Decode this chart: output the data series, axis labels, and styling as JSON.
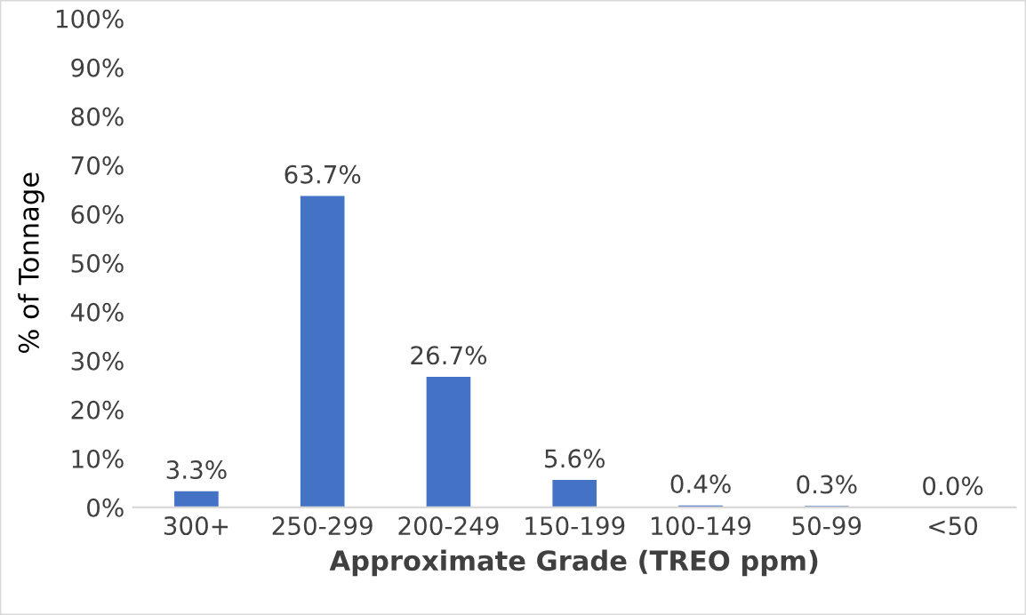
{
  "chart_data": {
    "type": "bar",
    "xlabel": "Approximate Grade (TREO ppm)",
    "ylabel": "% of Tonnage",
    "categories": [
      "300+",
      "250-299",
      "200-249",
      "150-199",
      "100-149",
      "50-99",
      "<50"
    ],
    "values": [
      3.3,
      63.7,
      26.7,
      5.6,
      0.4,
      0.3,
      0.0
    ],
    "value_labels": [
      "3.3%",
      "63.7%",
      "26.7%",
      "5.6%",
      "0.4%",
      "0.3%",
      "0.0%"
    ],
    "color": "#4472c4",
    "ylim": [
      0,
      100
    ],
    "yticks": [
      {
        "value": 0,
        "label": "0%"
      },
      {
        "value": 10,
        "label": "10%"
      },
      {
        "value": 20,
        "label": "20%"
      },
      {
        "value": 30,
        "label": "30%"
      },
      {
        "value": 40,
        "label": "40%"
      },
      {
        "value": 50,
        "label": "50%"
      },
      {
        "value": 60,
        "label": "60%"
      },
      {
        "value": 70,
        "label": "70%"
      },
      {
        "value": 80,
        "label": "80%"
      },
      {
        "value": 90,
        "label": "90%"
      },
      {
        "value": 100,
        "label": "100%"
      }
    ],
    "grid": false,
    "legend": false
  }
}
